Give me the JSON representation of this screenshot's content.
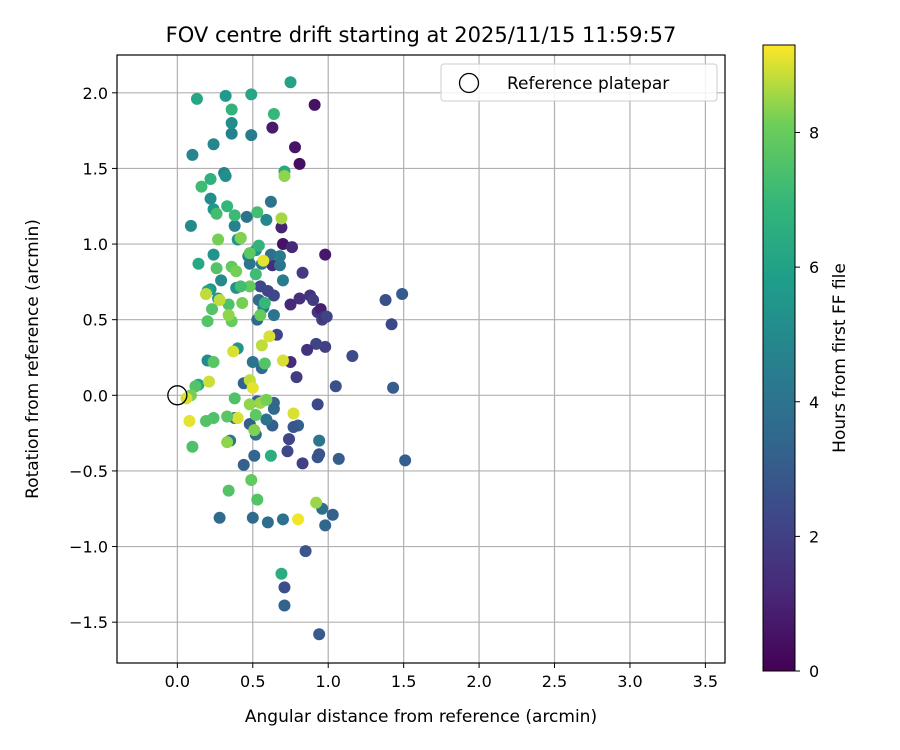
{
  "chart_data": {
    "type": "scatter",
    "title": "FOV centre drift starting at 2025/11/15 11:59:57",
    "xlabel": "Angular distance from reference (arcmin)",
    "ylabel": "Rotation from reference (arcmin)",
    "xlim": [
      -0.4,
      3.63
    ],
    "ylim": [
      -1.77,
      2.25
    ],
    "xticks": [
      "0.0",
      "0.5",
      "1.0",
      "1.5",
      "2.0",
      "2.5",
      "3.0",
      "3.5"
    ],
    "xtick_values": [
      0,
      0.5,
      1.0,
      1.5,
      2.0,
      2.5,
      3.0,
      3.5
    ],
    "yticks": [
      "−1.5",
      "−1.0",
      "−0.5",
      "0.0",
      "0.5",
      "1.0",
      "1.5",
      "2.0"
    ],
    "ytick_values": [
      -1.5,
      -1.0,
      -0.5,
      0.0,
      0.5,
      1.0,
      1.5,
      2.0
    ],
    "grid": true,
    "colormap": "viridis",
    "colorbar": {
      "label": "Hours from first FF file",
      "range": [
        0,
        9.3
      ],
      "ticks": [
        "0",
        "2",
        "4",
        "6",
        "8"
      ],
      "tick_values": [
        0,
        2,
        4,
        6,
        8
      ]
    },
    "legend": {
      "position": "top-right",
      "entries": [
        {
          "label": "Reference platepar",
          "marker": "open-circle"
        }
      ]
    },
    "reference_point": {
      "x": 0.0,
      "y": 0.0
    },
    "points": [
      [
        0.91,
        1.92,
        0.5
      ],
      [
        0.81,
        1.53,
        0.4
      ],
      [
        0.78,
        1.64,
        0.6
      ],
      [
        0.63,
        1.77,
        0.8
      ],
      [
        0.69,
        1.11,
        1.0
      ],
      [
        0.7,
        1.0,
        0.5
      ],
      [
        0.98,
        0.93,
        0.7
      ],
      [
        0.76,
        0.98,
        1.2
      ],
      [
        0.63,
        0.86,
        1.3
      ],
      [
        0.83,
        0.81,
        1.8
      ],
      [
        0.88,
        0.66,
        1.6
      ],
      [
        0.81,
        0.64,
        1.4
      ],
      [
        0.75,
        0.6,
        1.2
      ],
      [
        0.93,
        0.55,
        1.7
      ],
      [
        0.95,
        0.57,
        0.9
      ],
      [
        0.9,
        0.63,
        1.9
      ],
      [
        0.96,
        0.5,
        2.0
      ],
      [
        0.97,
        0.52,
        1.5
      ],
      [
        0.98,
        0.32,
        2.0
      ],
      [
        0.92,
        0.34,
        2.1
      ],
      [
        0.86,
        0.3,
        1.5
      ],
      [
        0.75,
        0.22,
        1.3
      ],
      [
        0.79,
        0.12,
        1.9
      ],
      [
        0.99,
        0.52,
        2.1
      ],
      [
        1.16,
        0.26,
        2.4
      ],
      [
        1.05,
        0.06,
        2.6
      ],
      [
        1.38,
        0.63,
        2.6
      ],
      [
        1.49,
        0.67,
        3.0
      ],
      [
        1.42,
        0.47,
        2.3
      ],
      [
        1.43,
        0.05,
        3.0
      ],
      [
        1.51,
        -0.43,
        3.1
      ],
      [
        1.07,
        -0.42,
        3.1
      ],
      [
        0.93,
        -0.06,
        2.3
      ],
      [
        0.93,
        -0.41,
        2.9
      ],
      [
        0.94,
        -0.39,
        2.7
      ],
      [
        0.83,
        -0.45,
        2.0
      ],
      [
        0.8,
        -0.2,
        3.2
      ],
      [
        0.77,
        -0.21,
        2.8
      ],
      [
        0.74,
        -0.29,
        2.2
      ],
      [
        0.73,
        -0.37,
        2.3
      ],
      [
        0.94,
        -0.3,
        4.1
      ],
      [
        0.96,
        -0.75,
        3.8
      ],
      [
        1.03,
        -0.79,
        3.3
      ],
      [
        0.98,
        -0.86,
        3.4
      ],
      [
        0.85,
        -1.03,
        2.8
      ],
      [
        0.94,
        -1.58,
        3.0
      ],
      [
        0.71,
        -1.27,
        2.6
      ],
      [
        0.71,
        -1.39,
        3.3
      ],
      [
        0.7,
        -0.82,
        3.9
      ],
      [
        0.6,
        -0.84,
        3.7
      ],
      [
        0.5,
        -0.81,
        3.6
      ],
      [
        0.28,
        -0.81,
        3.6
      ],
      [
        0.44,
        -0.46,
        3.2
      ],
      [
        0.51,
        -0.4,
        3.4
      ],
      [
        0.62,
        -0.4,
        6.5
      ],
      [
        0.52,
        -0.26,
        3.8
      ],
      [
        0.63,
        -0.2,
        3.2
      ],
      [
        0.59,
        -0.16,
        4.0
      ],
      [
        0.64,
        -0.09,
        3.6
      ],
      [
        0.64,
        -0.05,
        3.4
      ],
      [
        0.53,
        -0.04,
        3.0
      ],
      [
        0.48,
        -0.19,
        3.1
      ],
      [
        0.38,
        -0.15,
        3.8
      ],
      [
        0.35,
        -0.3,
        4.2
      ],
      [
        0.44,
        0.08,
        3.3
      ],
      [
        0.48,
        0.08,
        3.4
      ],
      [
        0.56,
        0.18,
        3.6
      ],
      [
        0.5,
        0.22,
        4.0
      ],
      [
        0.66,
        0.4,
        2.2
      ],
      [
        0.64,
        0.53,
        4.0
      ],
      [
        0.64,
        0.66,
        2.3
      ],
      [
        0.6,
        0.69,
        2.2
      ],
      [
        0.55,
        0.72,
        2.3
      ],
      [
        0.54,
        0.63,
        3.6
      ],
      [
        0.53,
        0.5,
        3.5
      ],
      [
        0.57,
        0.58,
        4.6
      ],
      [
        0.56,
        0.87,
        4.2
      ],
      [
        0.62,
        0.93,
        3.8
      ],
      [
        0.68,
        0.86,
        4.0
      ],
      [
        0.68,
        0.92,
        4.3
      ],
      [
        0.7,
        0.76,
        4.4
      ],
      [
        0.59,
        1.16,
        4.8
      ],
      [
        0.62,
        1.28,
        4.0
      ],
      [
        0.46,
        1.18,
        4.0
      ],
      [
        0.47,
        0.92,
        4.7
      ],
      [
        0.48,
        0.87,
        4.1
      ],
      [
        0.52,
        0.96,
        5.4
      ],
      [
        0.38,
        1.12,
        4.7
      ],
      [
        0.4,
        1.03,
        5.4
      ],
      [
        0.39,
        0.71,
        5.3
      ],
      [
        0.4,
        0.31,
        5.4
      ],
      [
        0.36,
        1.73,
        4.6
      ],
      [
        0.49,
        1.72,
        4.4
      ],
      [
        0.36,
        1.8,
        5.1
      ],
      [
        0.24,
        1.66,
        4.8
      ],
      [
        0.31,
        1.47,
        4.6
      ],
      [
        0.32,
        1.45,
        5.2
      ],
      [
        0.1,
        1.59,
        4.8
      ],
      [
        0.09,
        1.12,
        5.0
      ],
      [
        0.22,
        1.3,
        5.1
      ],
      [
        0.24,
        1.23,
        5.6
      ],
      [
        0.24,
        0.93,
        5.4
      ],
      [
        0.29,
        0.76,
        5.0
      ],
      [
        0.27,
        0.64,
        5.2
      ],
      [
        0.22,
        0.7,
        5.4
      ],
      [
        0.2,
        0.69,
        6.0
      ],
      [
        0.2,
        0.23,
        5.0
      ],
      [
        0.14,
        0.07,
        6.1
      ],
      [
        0.75,
        2.07,
        6.0
      ],
      [
        0.32,
        1.98,
        5.7
      ],
      [
        0.13,
        1.96,
        6.2
      ],
      [
        0.49,
        1.99,
        6.2
      ],
      [
        0.36,
        1.89,
        6.8
      ],
      [
        0.64,
        1.86,
        7.0
      ],
      [
        0.71,
        1.48,
        6.3
      ],
      [
        0.22,
        1.43,
        6.7
      ],
      [
        0.16,
        1.38,
        7.2
      ],
      [
        0.26,
        1.2,
        7.3
      ],
      [
        0.33,
        1.25,
        6.9
      ],
      [
        0.38,
        1.19,
        7.1
      ],
      [
        0.53,
        1.21,
        7.3
      ],
      [
        0.42,
        1.04,
        7.5
      ],
      [
        0.54,
        0.99,
        6.8
      ],
      [
        0.48,
        0.94,
        7.8
      ],
      [
        0.14,
        0.87,
        6.3
      ],
      [
        0.26,
        0.84,
        7.6
      ],
      [
        0.36,
        0.85,
        7.9
      ],
      [
        0.39,
        0.82,
        8.2
      ],
      [
        0.52,
        0.8,
        7.2
      ],
      [
        0.48,
        0.72,
        7.9
      ],
      [
        0.42,
        0.72,
        7.3
      ],
      [
        0.58,
        0.61,
        7.0
      ],
      [
        0.43,
        0.61,
        8.2
      ],
      [
        0.34,
        0.6,
        7.5
      ],
      [
        0.23,
        0.57,
        7.6
      ],
      [
        0.2,
        0.49,
        7.6
      ],
      [
        0.36,
        0.49,
        8.0
      ],
      [
        0.34,
        0.53,
        8.4
      ],
      [
        0.55,
        0.53,
        8.0
      ],
      [
        0.28,
        0.63,
        8.8
      ],
      [
        0.19,
        0.67,
        8.8
      ],
      [
        0.27,
        1.03,
        8.2
      ],
      [
        0.42,
        1.04,
        8.3
      ],
      [
        0.69,
        1.17,
        8.6
      ],
      [
        0.71,
        1.45,
        8.4
      ],
      [
        0.57,
        0.89,
        9.1
      ],
      [
        0.61,
        0.39,
        9.0
      ],
      [
        0.56,
        0.33,
        8.8
      ],
      [
        0.37,
        0.29,
        9.0
      ],
      [
        0.58,
        0.21,
        7.6
      ],
      [
        0.7,
        0.23,
        9.0
      ],
      [
        0.24,
        0.22,
        7.7
      ],
      [
        0.12,
        0.06,
        7.6
      ],
      [
        0.09,
        0.0,
        8.2
      ],
      [
        0.06,
        -0.02,
        9.0
      ],
      [
        0.21,
        0.09,
        8.9
      ],
      [
        0.48,
        0.1,
        8.8
      ],
      [
        0.38,
        -0.02,
        7.5
      ],
      [
        0.48,
        -0.06,
        8.4
      ],
      [
        0.5,
        0.05,
        9.1
      ],
      [
        0.55,
        -0.05,
        8.5
      ],
      [
        0.59,
        -0.03,
        8.2
      ],
      [
        0.52,
        -0.13,
        7.8
      ],
      [
        0.4,
        -0.15,
        9.0
      ],
      [
        0.33,
        -0.14,
        7.7
      ],
      [
        0.24,
        -0.15,
        7.5
      ],
      [
        0.19,
        -0.17,
        7.6
      ],
      [
        0.08,
        -0.17,
        9.1
      ],
      [
        0.1,
        -0.34,
        7.5
      ],
      [
        0.33,
        -0.31,
        8.4
      ],
      [
        0.51,
        -0.23,
        8.3
      ],
      [
        0.77,
        -0.12,
        9.0
      ],
      [
        0.34,
        -0.63,
        7.6
      ],
      [
        0.49,
        -0.56,
        7.9
      ],
      [
        0.53,
        -0.69,
        7.6
      ],
      [
        0.92,
        -0.71,
        8.5
      ],
      [
        0.8,
        -0.82,
        9.2
      ],
      [
        0.69,
        -1.18,
        6.5
      ]
    ]
  }
}
